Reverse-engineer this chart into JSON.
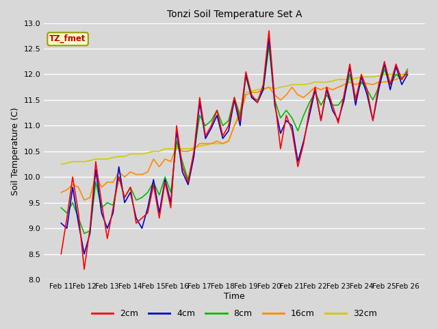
{
  "title": "Tonzi Soil Temperature Set A",
  "xlabel": "Time",
  "ylabel": "Soil Temperature (C)",
  "ylim": [
    8.0,
    13.0
  ],
  "background_color": "#d8d8d8",
  "plot_bg_color": "#d8d8d8",
  "legend_label": "TZ_fmet",
  "series": {
    "2cm": {
      "color": "#ff0000",
      "linewidth": 1.2
    },
    "4cm": {
      "color": "#0000cc",
      "linewidth": 1.2
    },
    "8cm": {
      "color": "#00bb00",
      "linewidth": 1.2
    },
    "16cm": {
      "color": "#ff8800",
      "linewidth": 1.2
    },
    "32cm": {
      "color": "#cccc00",
      "linewidth": 1.2
    }
  },
  "xtick_labels": [
    "Feb 11",
    "Feb 12",
    "Feb 13",
    "Feb 14",
    "Feb 15",
    "Feb 16",
    "Feb 17",
    "Feb 18",
    "Feb 19",
    "Feb 20",
    "Feb 21",
    "Feb 22",
    "Feb 23",
    "Feb 24",
    "Feb 25",
    "Feb 26"
  ],
  "ytick_labels": [
    "8.0",
    "8.5",
    "9.0",
    "9.5",
    "10.0",
    "10.5",
    "11.0",
    "11.5",
    "12.0",
    "12.5",
    "13.0"
  ],
  "data_2cm": [
    8.5,
    9.2,
    10.0,
    9.3,
    8.2,
    9.0,
    10.3,
    9.5,
    8.8,
    9.4,
    10.0,
    9.6,
    9.8,
    9.1,
    9.2,
    9.3,
    9.85,
    9.2,
    9.9,
    9.4,
    11.0,
    10.2,
    9.9,
    10.5,
    11.55,
    10.8,
    11.0,
    11.3,
    10.8,
    11.0,
    11.55,
    11.1,
    12.05,
    11.6,
    11.45,
    11.8,
    12.85,
    11.5,
    10.55,
    11.2,
    10.9,
    10.2,
    10.65,
    11.3,
    11.75,
    11.1,
    11.75,
    11.4,
    11.05,
    11.6,
    12.2,
    11.5,
    12.0,
    11.7,
    11.1,
    11.8,
    12.25,
    11.8,
    12.2,
    11.9,
    12.05
  ],
  "data_4cm": [
    9.1,
    9.0,
    9.8,
    9.1,
    8.5,
    8.9,
    10.15,
    9.3,
    9.0,
    9.3,
    10.2,
    9.5,
    9.7,
    9.2,
    9.0,
    9.4,
    9.95,
    9.3,
    9.95,
    9.5,
    10.9,
    10.1,
    9.85,
    10.4,
    11.45,
    10.75,
    10.95,
    11.2,
    10.75,
    10.9,
    11.5,
    11.0,
    12.0,
    11.55,
    11.45,
    11.7,
    12.7,
    11.4,
    10.85,
    11.1,
    11.0,
    10.3,
    10.7,
    11.2,
    11.7,
    11.1,
    11.7,
    11.3,
    11.1,
    11.5,
    12.15,
    11.4,
    11.95,
    11.6,
    11.1,
    11.7,
    12.2,
    11.7,
    12.15,
    11.8,
    12.0
  ],
  "data_8cm": [
    9.4,
    9.3,
    9.5,
    9.2,
    8.9,
    8.95,
    9.9,
    9.4,
    9.5,
    9.45,
    10.0,
    9.6,
    9.8,
    9.55,
    9.6,
    9.7,
    9.9,
    9.65,
    10.0,
    9.7,
    10.7,
    10.3,
    9.95,
    10.45,
    11.2,
    11.0,
    11.1,
    11.3,
    11.0,
    11.1,
    11.55,
    11.2,
    11.95,
    11.55,
    11.5,
    11.7,
    12.55,
    11.5,
    11.15,
    11.3,
    11.15,
    10.9,
    11.2,
    11.45,
    11.65,
    11.4,
    11.6,
    11.4,
    11.4,
    11.55,
    12.0,
    11.55,
    11.85,
    11.7,
    11.5,
    11.75,
    12.1,
    11.8,
    12.0,
    11.9,
    12.1
  ],
  "data_16cm": [
    9.7,
    9.75,
    9.85,
    9.8,
    9.55,
    9.6,
    10.05,
    9.8,
    9.9,
    9.9,
    10.1,
    10.0,
    10.1,
    10.05,
    10.05,
    10.1,
    10.35,
    10.2,
    10.35,
    10.3,
    10.6,
    10.5,
    10.5,
    10.55,
    10.65,
    10.65,
    10.65,
    10.7,
    10.65,
    10.7,
    11.0,
    11.2,
    11.6,
    11.65,
    11.65,
    11.7,
    11.75,
    11.6,
    11.5,
    11.6,
    11.75,
    11.6,
    11.55,
    11.65,
    11.75,
    11.7,
    11.75,
    11.7,
    11.75,
    11.8,
    11.85,
    11.8,
    11.85,
    11.82,
    11.8,
    11.85,
    11.85,
    11.87,
    11.9,
    11.95,
    12.0
  ],
  "data_32cm": [
    10.25,
    10.27,
    10.3,
    10.3,
    10.3,
    10.32,
    10.35,
    10.35,
    10.35,
    10.38,
    10.4,
    10.4,
    10.45,
    10.45,
    10.45,
    10.47,
    10.5,
    10.5,
    10.55,
    10.55,
    10.55,
    10.55,
    10.55,
    10.57,
    10.6,
    10.62,
    10.65,
    10.65,
    10.65,
    10.7,
    11.0,
    11.3,
    11.65,
    11.68,
    11.7,
    11.72,
    11.75,
    11.72,
    11.75,
    11.77,
    11.8,
    11.8,
    11.8,
    11.82,
    11.85,
    11.85,
    11.85,
    11.87,
    11.9,
    11.9,
    11.9,
    11.92,
    11.95,
    11.95,
    11.95,
    11.97,
    12.0,
    12.0,
    12.0,
    12.0,
    12.0
  ]
}
